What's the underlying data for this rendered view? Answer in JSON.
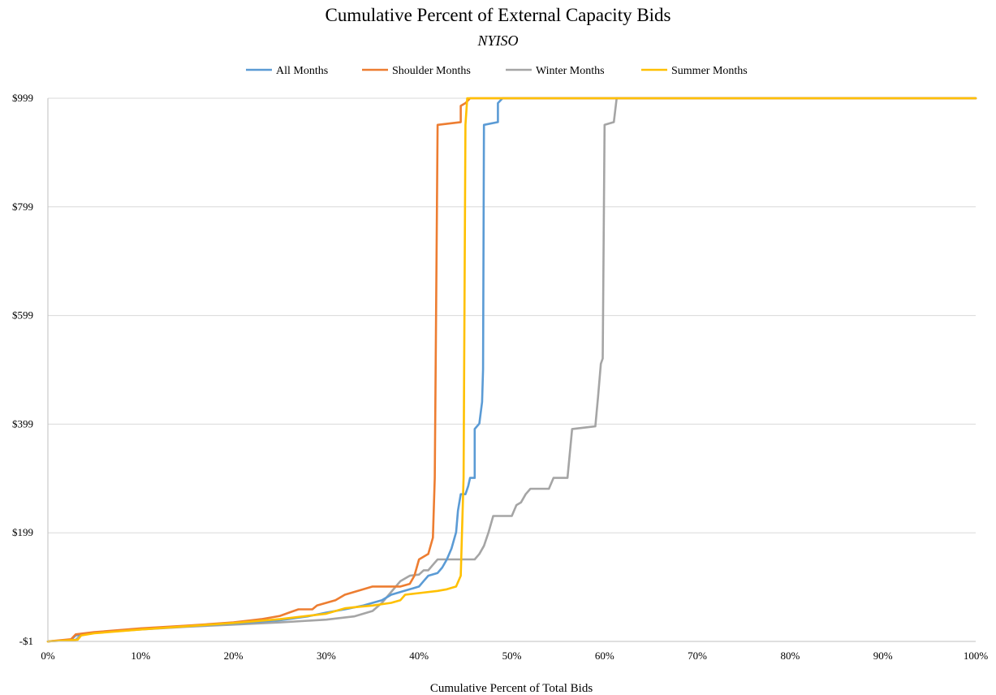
{
  "chart_data": {
    "type": "line",
    "title": "Cumulative Percent of External Capacity Bids",
    "subtitle": "NYISO",
    "xlabel": "Cumulative Percent of Total Bids",
    "ylabel": "",
    "xlim": [
      0,
      100
    ],
    "ylim": [
      -1,
      999
    ],
    "x_ticks": [
      "0%",
      "10%",
      "20%",
      "30%",
      "40%",
      "50%",
      "60%",
      "70%",
      "80%",
      "90%",
      "100%"
    ],
    "y_ticks": [
      "-$1",
      "$199",
      "$399",
      "$599",
      "$799",
      "$999"
    ],
    "grid": "horizontal",
    "legend_position": "top",
    "series": [
      {
        "name": "All Months",
        "color": "#5B9BD5",
        "points": [
          [
            0,
            -1
          ],
          [
            2.5,
            2
          ],
          [
            3,
            10
          ],
          [
            5,
            15
          ],
          [
            10,
            22
          ],
          [
            15,
            27
          ],
          [
            20,
            32
          ],
          [
            25,
            38
          ],
          [
            28,
            45
          ],
          [
            30,
            52
          ],
          [
            32,
            58
          ],
          [
            34,
            65
          ],
          [
            36,
            75
          ],
          [
            37,
            85
          ],
          [
            39,
            95
          ],
          [
            40,
            100
          ],
          [
            40.5,
            110
          ],
          [
            41,
            120
          ],
          [
            42,
            125
          ],
          [
            42.5,
            135
          ],
          [
            43,
            150
          ],
          [
            43.5,
            170
          ],
          [
            44,
            200
          ],
          [
            44.2,
            240
          ],
          [
            44.5,
            270
          ],
          [
            45,
            270
          ],
          [
            45.3,
            285
          ],
          [
            45.5,
            300
          ],
          [
            46,
            300
          ],
          [
            46,
            390
          ],
          [
            46.5,
            400
          ],
          [
            46.8,
            440
          ],
          [
            46.9,
            500
          ],
          [
            47,
            950
          ],
          [
            48.5,
            955
          ],
          [
            48.5,
            990
          ],
          [
            49,
            999
          ],
          [
            100,
            999
          ]
        ]
      },
      {
        "name": "Shoulder Months",
        "color": "#ED7D31",
        "points": [
          [
            0,
            -1
          ],
          [
            2.5,
            3
          ],
          [
            3,
            12
          ],
          [
            5,
            16
          ],
          [
            10,
            23
          ],
          [
            15,
            28
          ],
          [
            20,
            34
          ],
          [
            23,
            40
          ],
          [
            25,
            46
          ],
          [
            26,
            52
          ],
          [
            27,
            58
          ],
          [
            28.5,
            58
          ],
          [
            29,
            65
          ],
          [
            30,
            70
          ],
          [
            31,
            75
          ],
          [
            32,
            85
          ],
          [
            33,
            90
          ],
          [
            34,
            95
          ],
          [
            35,
            100
          ],
          [
            38,
            100
          ],
          [
            39,
            105
          ],
          [
            39.5,
            120
          ],
          [
            40,
            150
          ],
          [
            41,
            160
          ],
          [
            41.5,
            190
          ],
          [
            41.7,
            300
          ],
          [
            42,
            950
          ],
          [
            44.5,
            955
          ],
          [
            44.5,
            985
          ],
          [
            45,
            990
          ],
          [
            45.5,
            999
          ],
          [
            100,
            999
          ]
        ]
      },
      {
        "name": "Winter Months",
        "color": "#A5A5A5",
        "points": [
          [
            0,
            -1
          ],
          [
            3,
            2
          ],
          [
            3.5,
            10
          ],
          [
            5,
            15
          ],
          [
            10,
            21
          ],
          [
            15,
            26
          ],
          [
            20,
            30
          ],
          [
            25,
            34
          ],
          [
            30,
            39
          ],
          [
            33,
            45
          ],
          [
            35,
            55
          ],
          [
            36,
            70
          ],
          [
            37,
            90
          ],
          [
            38,
            110
          ],
          [
            39,
            120
          ],
          [
            40,
            122
          ],
          [
            40.5,
            130
          ],
          [
            41,
            130
          ],
          [
            41.5,
            140
          ],
          [
            42,
            150
          ],
          [
            46,
            150
          ],
          [
            46.5,
            160
          ],
          [
            47,
            175
          ],
          [
            47.5,
            200
          ],
          [
            48,
            230
          ],
          [
            50,
            230
          ],
          [
            50.5,
            250
          ],
          [
            51,
            255
          ],
          [
            51.5,
            270
          ],
          [
            52,
            280
          ],
          [
            54,
            280
          ],
          [
            54.5,
            300
          ],
          [
            56,
            300
          ],
          [
            56.5,
            390
          ],
          [
            59,
            395
          ],
          [
            59.3,
            450
          ],
          [
            59.6,
            510
          ],
          [
            59.8,
            520
          ],
          [
            60,
            950
          ],
          [
            61,
            955
          ],
          [
            61.3,
            999
          ],
          [
            100,
            999
          ]
        ]
      },
      {
        "name": "Summer Months",
        "color": "#FFC000",
        "points": [
          [
            0,
            -1
          ],
          [
            3.2,
            2
          ],
          [
            3.6,
            10
          ],
          [
            5,
            14
          ],
          [
            10,
            21
          ],
          [
            15,
            27
          ],
          [
            20,
            33
          ],
          [
            25,
            40
          ],
          [
            30,
            50
          ],
          [
            32,
            60
          ],
          [
            33,
            62
          ],
          [
            35,
            65
          ],
          [
            37,
            70
          ],
          [
            38,
            75
          ],
          [
            38.5,
            85
          ],
          [
            40,
            88
          ],
          [
            42,
            92
          ],
          [
            43,
            95
          ],
          [
            44,
            100
          ],
          [
            44.5,
            120
          ],
          [
            44.8,
            300
          ],
          [
            45,
            950
          ],
          [
            45.2,
            999
          ],
          [
            100,
            999
          ]
        ]
      }
    ]
  }
}
